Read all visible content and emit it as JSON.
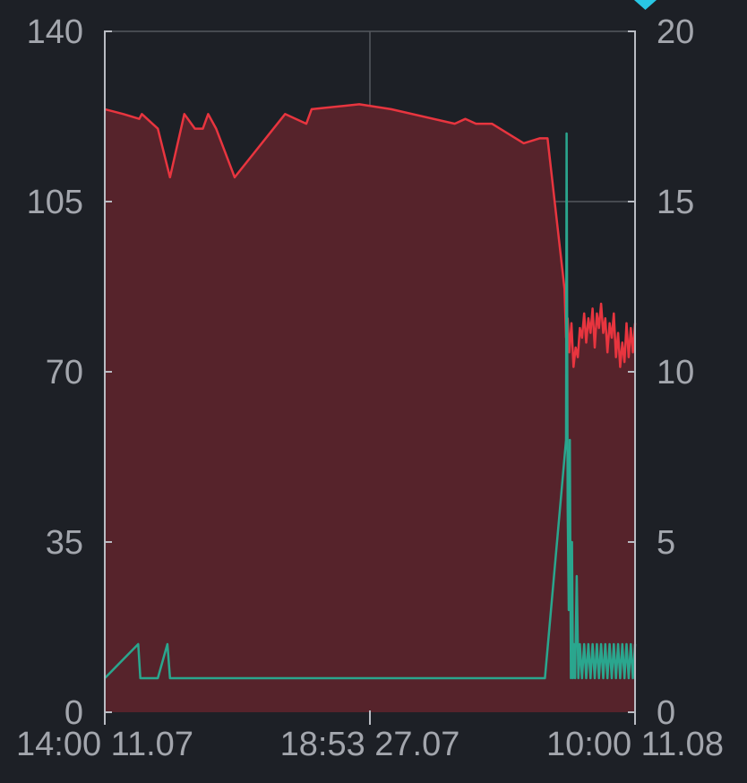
{
  "chart_data": {
    "type": "area",
    "x_ticks": [
      "14:00 11.07",
      "18:53 27.07",
      "10:00 11.08"
    ],
    "y_left_ticks": [
      "0",
      "35",
      "70",
      "105",
      "140"
    ],
    "y_right_ticks": [
      "0",
      "5",
      "10",
      "15",
      "20"
    ],
    "y_left_lim": [
      0,
      140
    ],
    "y_right_lim": [
      0,
      20
    ],
    "x_lim": [
      0,
      100
    ],
    "grid": true,
    "series": [
      {
        "axis": "left",
        "color": "#e8353f",
        "fill": "#56232b",
        "filled": true,
        "x": [
          0,
          3.5,
          6.5,
          7,
          10,
          12.3,
          15,
          17,
          18.5,
          19.5,
          21,
          24.5,
          34,
          38,
          39,
          48,
          54,
          66,
          68,
          70,
          73,
          79,
          82,
          83,
          83.5,
          86.7,
          87,
          87.3,
          87.6,
          88,
          88.4,
          88.8,
          89.2,
          89.6,
          90,
          90.4,
          90.8,
          91.2,
          91.6,
          92,
          92.4,
          92.8,
          93.2,
          93.6,
          94,
          94.4,
          94.8,
          95.2,
          95.6,
          96,
          96.4,
          96.8,
          97.2,
          97.6,
          98,
          98.4,
          98.8,
          99.2,
          99.6,
          100
        ],
        "y": [
          124,
          123,
          122,
          123,
          120,
          110,
          123,
          120,
          120,
          123,
          120,
          110,
          123,
          121,
          124,
          125,
          124,
          121,
          122,
          121,
          121,
          117,
          118,
          118,
          118,
          87,
          77,
          81,
          74,
          80,
          71,
          75,
          73,
          79,
          77,
          82,
          76,
          81,
          78,
          83,
          75,
          82,
          79,
          84,
          78,
          81,
          74,
          80,
          77,
          82,
          73,
          78,
          71,
          76,
          72,
          80,
          73,
          79,
          74,
          80
        ]
      },
      {
        "axis": "right",
        "color": "#2aa68e",
        "filled": false,
        "x": [
          0,
          6.3,
          6.7,
          10,
          11.8,
          12.3,
          83,
          87,
          87.1,
          87.3,
          87.5,
          87.7,
          87.9,
          88.1,
          88.3,
          88.5,
          88.7,
          89,
          89.3,
          89.6,
          90,
          90.4,
          90.8,
          91.2,
          91.6,
          92,
          92.4,
          92.8,
          93.2,
          93.6,
          94,
          94.4,
          94.8,
          95.2,
          95.6,
          96,
          96.4,
          96.8,
          97.2,
          97.6,
          98,
          98.4,
          98.8,
          99.2,
          99.6,
          100
        ],
        "y": [
          1,
          2,
          1,
          1,
          2,
          1,
          1,
          8,
          17,
          6,
          3,
          8,
          1,
          5,
          1,
          2,
          1,
          4,
          1,
          2,
          1,
          2,
          1,
          2,
          1,
          2,
          1,
          2,
          1,
          2,
          1,
          2,
          1,
          2,
          1,
          2,
          1,
          2,
          1,
          2,
          1,
          2,
          1,
          2,
          1,
          2
        ]
      }
    ],
    "marker_color": "#29c7e4"
  }
}
